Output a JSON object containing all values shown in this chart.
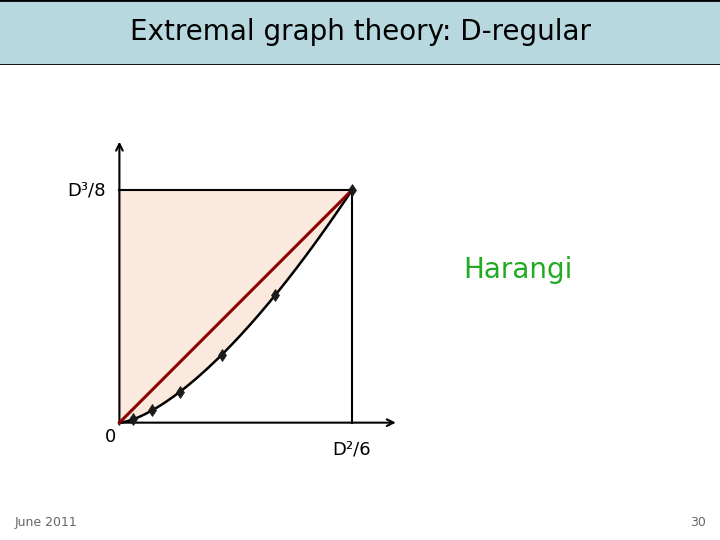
{
  "title": "Extremal graph theory: D-regular",
  "title_bg": "#b8d8e0",
  "title_fontsize": 20,
  "y_label": "D³/8",
  "x_label": "D²/6",
  "harangi_text": "Harangi",
  "harangi_color": "#22aa22",
  "harangi_fontsize": 20,
  "june_text": "June 2011",
  "page_num": "30",
  "fill_color": "#fce9de",
  "curve_color": "#000000",
  "line_color": "#8b0000",
  "marker_color": "#1a1a1a",
  "background_color": "#ffffff",
  "curve_power": 1.5,
  "diamond_ts": [
    0.06,
    0.14,
    0.26,
    0.44,
    0.67,
    1.0
  ]
}
